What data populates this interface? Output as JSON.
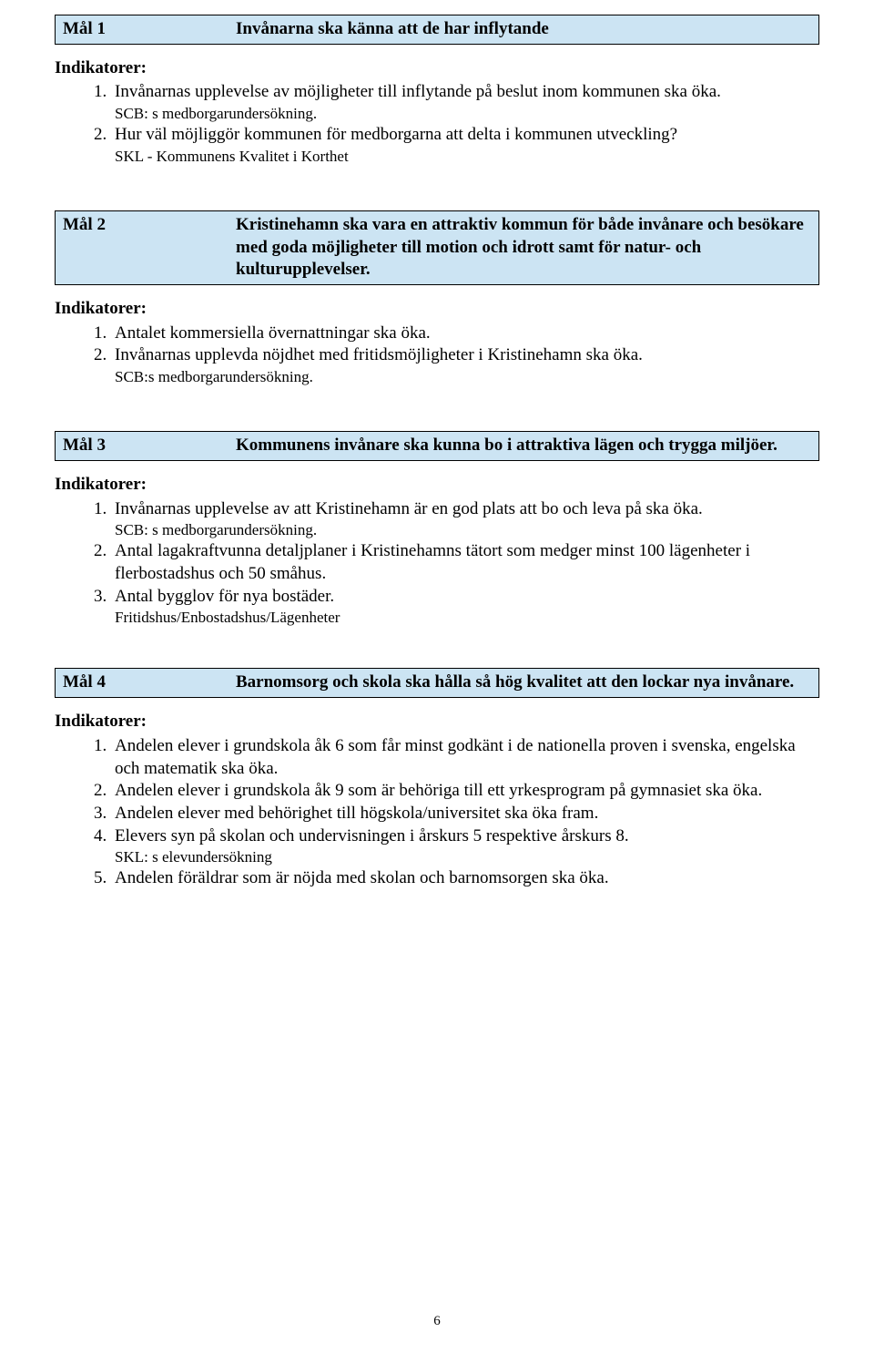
{
  "page_number": "6",
  "colors": {
    "header_bg": "#cce4f3",
    "header_border": "#000000",
    "text": "#000000",
    "page_bg": "#ffffff"
  },
  "goals": [
    {
      "label": "Mål 1",
      "title": "Invånarna ska känna att de har inflytande",
      "indikatorer_label": "Indikatorer:",
      "items": [
        {
          "text": "Invånarnas upplevelse av möjligheter till inflytande på beslut inom kommunen ska öka.",
          "note": "SCB: s medborgarundersökning."
        },
        {
          "text": "Hur väl möjliggör kommunen för medborgarna att delta i kommunen utveckling?",
          "note": "SKL - Kommunens Kvalitet i Korthet"
        }
      ]
    },
    {
      "label": "Mål 2",
      "title": "Kristinehamn ska vara en attraktiv kommun för både invånare och besökare med goda möjligheter till motion och idrott samt för natur- och kulturupplevelser.",
      "indikatorer_label": "Indikatorer:",
      "items": [
        {
          "text": "Antalet kommersiella övernattningar ska öka."
        },
        {
          "text": "Invånarnas upplevda nöjdhet med fritidsmöjligheter i Kristinehamn ska öka.",
          "note": "SCB:s medborgarundersökning."
        }
      ]
    },
    {
      "label": "Mål 3",
      "title": "Kommunens invånare ska kunna bo i attraktiva lägen och trygga miljöer.",
      "indikatorer_label": "Indikatorer:",
      "items": [
        {
          "text": "Invånarnas upplevelse av att Kristinehamn är en god plats att bo och leva på ska öka.",
          "note": "SCB: s medborgarundersökning."
        },
        {
          "text": "Antal lagakraftvunna detaljplaner i Kristinehamns tätort som medger minst 100 lägenheter i flerbostadshus och 50 småhus."
        },
        {
          "text": "Antal bygglov för nya bostäder.",
          "note": "Fritidshus/Enbostadshus/Lägenheter"
        }
      ]
    },
    {
      "label": "Mål 4",
      "title": "Barnomsorg och skola ska hålla så hög kvalitet att den lockar nya invånare.",
      "indikatorer_label": "Indikatorer:",
      "items": [
        {
          "text": "Andelen elever i grundskola åk 6 som får minst godkänt i de nationella proven i svenska, engelska och matematik ska öka."
        },
        {
          "text": "Andelen elever i grundskola åk 9 som är behöriga till ett yrkesprogram på gymnasiet ska öka."
        },
        {
          "text": "Andelen elever med behörighet till högskola/universitet ska öka fram."
        },
        {
          "text": "Elevers syn på skolan och undervisningen i årskurs 5 respektive årskurs 8.",
          "note": "SKL: s elevundersökning"
        },
        {
          "text": "Andelen föräldrar som är nöjda med skolan och barnomsorgen ska öka."
        }
      ]
    }
  ]
}
